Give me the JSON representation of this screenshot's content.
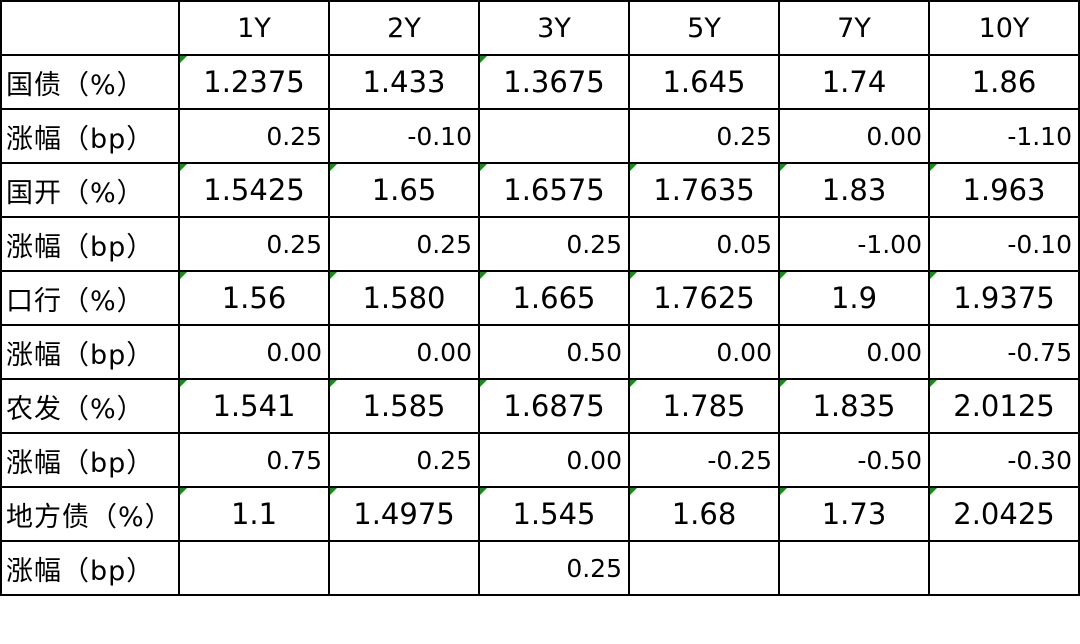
{
  "colors": {
    "up": "#22b04c",
    "down": "#ff1a1a",
    "neutral": "#000000",
    "comment_flag": "#1a8a1a"
  },
  "columns": [
    "",
    "1Y",
    "2Y",
    "3Y",
    "5Y",
    "7Y",
    "10Y"
  ],
  "rows": [
    {
      "label": "国债（%）",
      "kind": "yield",
      "cells": [
        {
          "text": "1.2375",
          "flag": true
        },
        {
          "text": "1.433",
          "flag": false
        },
        {
          "text": "1.3675",
          "flag": true
        },
        {
          "text": "1.645",
          "flag": false
        },
        {
          "text": "1.74",
          "flag": false
        },
        {
          "text": "1.86",
          "flag": false
        }
      ]
    },
    {
      "label": "涨幅（bp）",
      "kind": "change",
      "cells": [
        {
          "text": "0.25",
          "dir": "up"
        },
        {
          "text": "-0.10",
          "dir": "down"
        },
        {
          "text": "",
          "dir": "none"
        },
        {
          "text": "0.25",
          "dir": "up"
        },
        {
          "text": "0.00",
          "dir": "none"
        },
        {
          "text": "-1.10",
          "dir": "down"
        }
      ]
    },
    {
      "label": "国开（%）",
      "kind": "yield",
      "cells": [
        {
          "text": "1.5425",
          "flag": true
        },
        {
          "text": "1.65",
          "flag": true
        },
        {
          "text": "1.6575",
          "flag": true
        },
        {
          "text": "1.7635",
          "flag": true
        },
        {
          "text": "1.83",
          "flag": true
        },
        {
          "text": "1.963",
          "flag": true
        }
      ]
    },
    {
      "label": "涨幅（bp）",
      "kind": "change",
      "cells": [
        {
          "text": "0.25",
          "dir": "up"
        },
        {
          "text": "0.25",
          "dir": "up"
        },
        {
          "text": "0.25",
          "dir": "up"
        },
        {
          "text": "0.05",
          "dir": "up"
        },
        {
          "text": "-1.00",
          "dir": "down"
        },
        {
          "text": "-0.10",
          "dir": "down"
        }
      ]
    },
    {
      "label": "口行（%）",
      "kind": "yield",
      "cells": [
        {
          "text": "1.56",
          "flag": true
        },
        {
          "text": "1.580",
          "flag": true
        },
        {
          "text": "1.665",
          "flag": true
        },
        {
          "text": "1.7625",
          "flag": true
        },
        {
          "text": "1.9",
          "flag": true
        },
        {
          "text": "1.9375",
          "flag": true
        }
      ]
    },
    {
      "label": "涨幅（bp）",
      "kind": "change",
      "cells": [
        {
          "text": "0.00",
          "dir": "none"
        },
        {
          "text": "0.00",
          "dir": "none"
        },
        {
          "text": "0.50",
          "dir": "up"
        },
        {
          "text": "0.00",
          "dir": "none"
        },
        {
          "text": "0.00",
          "dir": "none"
        },
        {
          "text": "-0.75",
          "dir": "down"
        }
      ]
    },
    {
      "label": "农发（%）",
      "kind": "yield",
      "cells": [
        {
          "text": "1.541",
          "flag": true
        },
        {
          "text": "1.585",
          "flag": true
        },
        {
          "text": "1.6875",
          "flag": true
        },
        {
          "text": "1.785",
          "flag": true
        },
        {
          "text": "1.835",
          "flag": true
        },
        {
          "text": "2.0125",
          "flag": true
        }
      ]
    },
    {
      "label": "涨幅（bp）",
      "kind": "change",
      "cells": [
        {
          "text": "0.75",
          "dir": "up"
        },
        {
          "text": "0.25",
          "dir": "up"
        },
        {
          "text": "0.00",
          "dir": "none"
        },
        {
          "text": "-0.25",
          "dir": "down"
        },
        {
          "text": "-0.50",
          "dir": "down"
        },
        {
          "text": "-0.30",
          "dir": "down"
        }
      ]
    },
    {
      "label": "地方债（%）",
      "kind": "yield",
      "cells": [
        {
          "text": "1.1",
          "flag": true
        },
        {
          "text": "1.4975",
          "flag": true
        },
        {
          "text": "1.545",
          "flag": true
        },
        {
          "text": "1.68",
          "flag": true
        },
        {
          "text": "1.73",
          "flag": true
        },
        {
          "text": "2.0425",
          "flag": true
        }
      ]
    },
    {
      "label": "涨幅（bp）",
      "kind": "change",
      "cells": [
        {
          "text": "",
          "dir": "none"
        },
        {
          "text": "",
          "dir": "none"
        },
        {
          "text": "0.25",
          "dir": "up"
        },
        {
          "text": "",
          "dir": "none"
        },
        {
          "text": "",
          "dir": "none"
        },
        {
          "text": "",
          "dir": "none"
        }
      ]
    }
  ]
}
